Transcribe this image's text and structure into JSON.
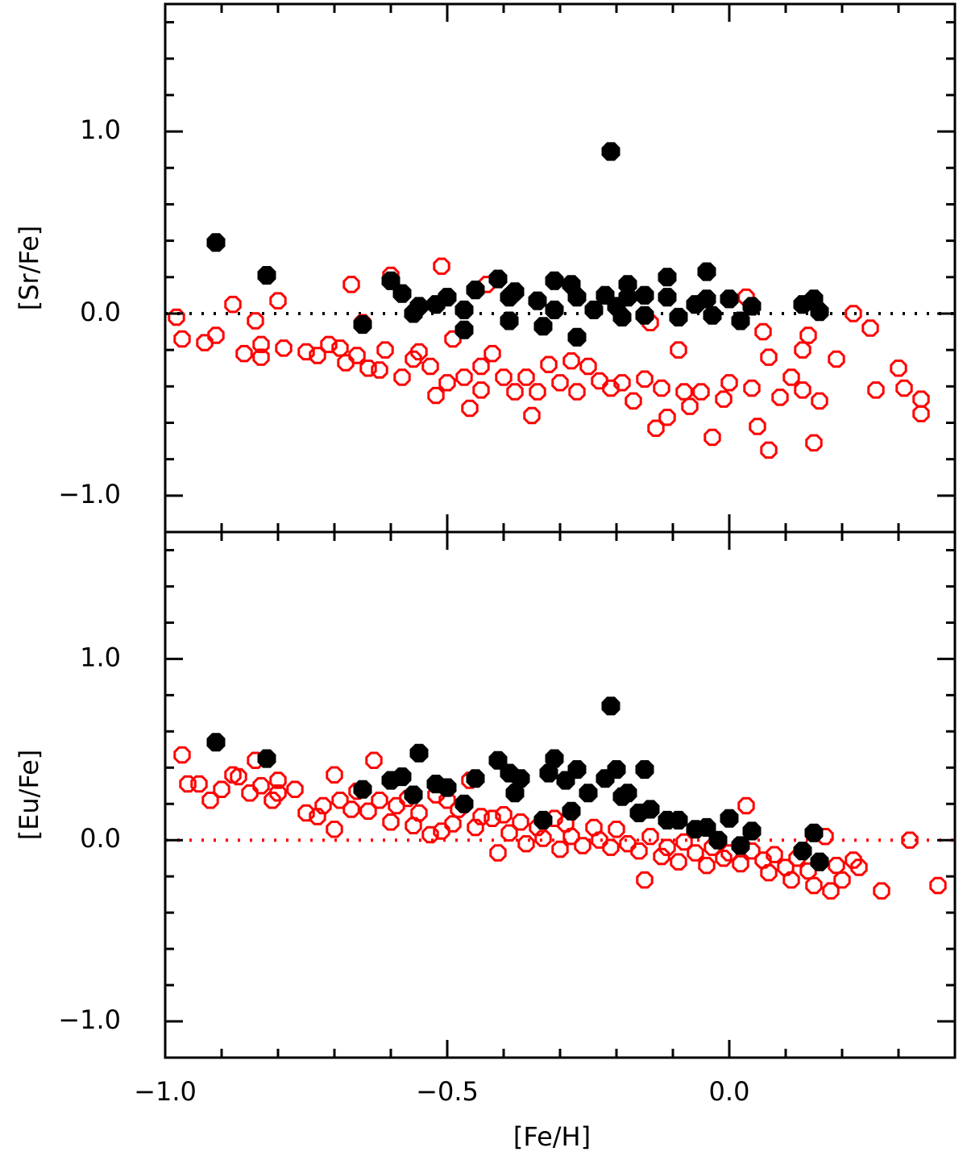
{
  "chart_data": [
    {
      "type": "scatter",
      "ylabel": "[Sr/Fe]",
      "xlim": [
        -1.0,
        0.4
      ],
      "ylim": [
        -1.2,
        1.7
      ],
      "xticks": [
        -1.0,
        -0.5,
        0.0
      ],
      "show_xtick_labels": false,
      "xminorticks": [
        -0.9,
        -0.8,
        -0.7,
        -0.6,
        -0.4,
        -0.3,
        -0.2,
        -0.1,
        0.1,
        0.2,
        0.3
      ],
      "yticks": [
        {
          "value": -1.0,
          "label": "−1.0"
        },
        {
          "value": 0.0,
          "label": "0.0"
        },
        {
          "value": 1.0,
          "label": "1.0"
        }
      ],
      "yminorticks": [
        -0.8,
        -0.6,
        -0.4,
        -0.2,
        0.2,
        0.4,
        0.6,
        0.8,
        1.2,
        1.4,
        1.6
      ],
      "hline": 0.0,
      "hline_color": "#000000",
      "series": [
        {
          "color": "#ff0000",
          "filled": false,
          "x": [
            -0.98,
            -0.97,
            -0.93,
            -0.91,
            -0.88,
            -0.86,
            -0.84,
            -0.83,
            -0.83,
            -0.8,
            -0.79,
            -0.75,
            -0.73,
            -0.71,
            -0.69,
            -0.68,
            -0.67,
            -0.66,
            -0.65,
            -0.64,
            -0.62,
            -0.61,
            -0.6,
            -0.58,
            -0.56,
            -0.55,
            -0.53,
            -0.52,
            -0.51,
            -0.5,
            -0.49,
            -0.47,
            -0.46,
            -0.44,
            -0.44,
            -0.43,
            -0.42,
            -0.4,
            -0.38,
            -0.36,
            -0.35,
            -0.34,
            -0.32,
            -0.3,
            -0.28,
            -0.27,
            -0.25,
            -0.23,
            -0.21,
            -0.19,
            -0.17,
            -0.15,
            -0.14,
            -0.13,
            -0.12,
            -0.11,
            -0.09,
            -0.08,
            -0.07,
            -0.05,
            -0.03,
            -0.01,
            0.0,
            0.03,
            0.04,
            0.05,
            0.06,
            0.07,
            0.07,
            0.09,
            0.11,
            0.13,
            0.13,
            0.14,
            0.15,
            0.16,
            0.19,
            0.22,
            0.25,
            0.26,
            0.3,
            0.31,
            0.34,
            0.34
          ],
          "values": [
            -0.02,
            -0.14,
            -0.16,
            -0.12,
            0.05,
            -0.22,
            -0.04,
            -0.17,
            -0.24,
            0.07,
            -0.19,
            -0.21,
            -0.23,
            -0.17,
            -0.19,
            -0.27,
            0.16,
            -0.23,
            -0.05,
            -0.3,
            -0.31,
            -0.2,
            0.21,
            -0.35,
            -0.25,
            -0.21,
            -0.29,
            -0.45,
            0.26,
            -0.38,
            -0.14,
            -0.35,
            -0.52,
            -0.29,
            -0.42,
            0.16,
            -0.22,
            -0.35,
            -0.43,
            -0.35,
            -0.56,
            -0.43,
            -0.28,
            -0.38,
            -0.26,
            -0.43,
            -0.29,
            -0.37,
            -0.41,
            -0.38,
            -0.48,
            -0.36,
            -0.05,
            -0.63,
            -0.41,
            -0.57,
            -0.2,
            -0.43,
            -0.51,
            -0.43,
            -0.68,
            -0.47,
            -0.38,
            0.09,
            -0.41,
            -0.62,
            -0.1,
            -0.75,
            -0.24,
            -0.46,
            -0.35,
            -0.2,
            -0.42,
            -0.12,
            -0.71,
            -0.48,
            -0.25,
            0.0,
            -0.08,
            -0.42,
            -0.3,
            -0.41,
            -0.47,
            -0.55
          ]
        },
        {
          "color": "#000000",
          "filled": true,
          "x": [
            -0.91,
            -0.82,
            -0.65,
            -0.6,
            -0.58,
            -0.56,
            -0.55,
            -0.52,
            -0.5,
            -0.47,
            -0.47,
            -0.45,
            -0.41,
            -0.39,
            -0.38,
            -0.39,
            -0.34,
            -0.33,
            -0.31,
            -0.31,
            -0.28,
            -0.27,
            -0.27,
            -0.24,
            -0.22,
            -0.21,
            -0.2,
            -0.19,
            -0.18,
            -0.18,
            -0.15,
            -0.15,
            -0.11,
            -0.11,
            -0.09,
            -0.06,
            -0.04,
            -0.04,
            -0.03,
            0.0,
            0.02,
            0.04,
            0.13,
            0.15,
            0.16
          ],
          "values": [
            0.39,
            0.21,
            -0.06,
            0.18,
            0.11,
            0.0,
            0.04,
            0.05,
            0.09,
            -0.09,
            0.02,
            0.13,
            0.19,
            0.09,
            0.12,
            -0.04,
            0.07,
            -0.07,
            0.18,
            0.02,
            0.16,
            -0.13,
            0.09,
            0.02,
            0.1,
            0.89,
            0.04,
            -0.02,
            0.16,
            0.09,
            0.1,
            -0.01,
            0.2,
            0.09,
            -0.02,
            0.05,
            0.23,
            0.08,
            -0.01,
            0.08,
            -0.04,
            0.04,
            0.05,
            0.08,
            0.01
          ]
        }
      ]
    },
    {
      "type": "scatter",
      "ylabel": "[Eu/Fe]",
      "xlabel": "[Fe/H]",
      "xlim": [
        -1.0,
        0.4
      ],
      "ylim": [
        -1.2,
        1.7
      ],
      "xticks": [
        {
          "value": -1.0,
          "label": "−1.0"
        },
        {
          "value": -0.5,
          "label": "−0.5"
        },
        {
          "value": 0.0,
          "label": "0.0"
        }
      ],
      "show_xtick_labels": true,
      "xminorticks": [
        -0.9,
        -0.8,
        -0.7,
        -0.6,
        -0.4,
        -0.3,
        -0.2,
        -0.1,
        0.1,
        0.2,
        0.3
      ],
      "yticks": [
        {
          "value": -1.0,
          "label": "−1.0"
        },
        {
          "value": 0.0,
          "label": "0.0"
        },
        {
          "value": 1.0,
          "label": "1.0"
        }
      ],
      "yminorticks": [
        -0.8,
        -0.6,
        -0.4,
        -0.2,
        0.2,
        0.4,
        0.6,
        0.8,
        1.2,
        1.4,
        1.6
      ],
      "hline": 0.0,
      "hline_color": "#ff0000",
      "series": [
        {
          "color": "#ff0000",
          "filled": false,
          "x": [
            -0.97,
            -0.96,
            -0.94,
            -0.92,
            -0.9,
            -0.88,
            -0.87,
            -0.85,
            -0.84,
            -0.83,
            -0.81,
            -0.8,
            -0.8,
            -0.77,
            -0.75,
            -0.73,
            -0.72,
            -0.7,
            -0.7,
            -0.69,
            -0.67,
            -0.66,
            -0.64,
            -0.63,
            -0.62,
            -0.6,
            -0.59,
            -0.57,
            -0.56,
            -0.55,
            -0.53,
            -0.52,
            -0.51,
            -0.5,
            -0.49,
            -0.48,
            -0.46,
            -0.45,
            -0.44,
            -0.42,
            -0.41,
            -0.4,
            -0.39,
            -0.37,
            -0.36,
            -0.34,
            -0.33,
            -0.31,
            -0.3,
            -0.29,
            -0.28,
            -0.26,
            -0.24,
            -0.23,
            -0.21,
            -0.2,
            -0.18,
            -0.16,
            -0.15,
            -0.14,
            -0.12,
            -0.11,
            -0.09,
            -0.08,
            -0.06,
            -0.04,
            -0.03,
            -0.01,
            0.0,
            0.02,
            0.03,
            0.04,
            0.06,
            0.07,
            0.08,
            0.1,
            0.11,
            0.12,
            0.14,
            0.15,
            0.17,
            0.18,
            0.19,
            0.2,
            0.22,
            0.23,
            0.27,
            0.32,
            0.37
          ],
          "values": [
            0.47,
            0.31,
            0.31,
            0.22,
            0.28,
            0.36,
            0.35,
            0.26,
            0.44,
            0.3,
            0.22,
            0.33,
            0.26,
            0.28,
            0.15,
            0.13,
            0.19,
            0.36,
            0.06,
            0.22,
            0.17,
            0.27,
            0.16,
            0.44,
            0.22,
            0.1,
            0.19,
            0.23,
            0.08,
            0.15,
            0.03,
            0.25,
            0.05,
            0.22,
            0.09,
            0.17,
            0.33,
            0.07,
            0.13,
            0.12,
            -0.07,
            0.14,
            0.04,
            0.1,
            -0.02,
            0.07,
            0.01,
            0.12,
            -0.05,
            0.09,
            0.02,
            -0.03,
            0.07,
            0.0,
            -0.04,
            0.06,
            -0.02,
            -0.06,
            -0.22,
            0.02,
            -0.09,
            -0.04,
            -0.12,
            -0.01,
            -0.07,
            -0.14,
            -0.04,
            -0.1,
            -0.07,
            -0.13,
            0.19,
            -0.06,
            -0.11,
            -0.18,
            -0.08,
            -0.15,
            -0.22,
            -0.1,
            -0.17,
            -0.25,
            0.02,
            -0.28,
            -0.14,
            -0.22,
            -0.11,
            -0.15,
            -0.28,
            0.0,
            -0.25
          ]
        },
        {
          "color": "#000000",
          "filled": true,
          "x": [
            -0.91,
            -0.82,
            -0.65,
            -0.6,
            -0.58,
            -0.56,
            -0.55,
            -0.52,
            -0.5,
            -0.47,
            -0.45,
            -0.41,
            -0.39,
            -0.38,
            -0.37,
            -0.33,
            -0.32,
            -0.31,
            -0.29,
            -0.28,
            -0.27,
            -0.25,
            -0.22,
            -0.21,
            -0.2,
            -0.19,
            -0.18,
            -0.16,
            -0.15,
            -0.14,
            -0.11,
            -0.09,
            -0.06,
            -0.04,
            -0.02,
            0.0,
            0.02,
            0.04,
            0.13,
            0.15,
            0.16
          ],
          "values": [
            0.54,
            0.45,
            0.28,
            0.33,
            0.35,
            0.25,
            0.48,
            0.31,
            0.29,
            0.2,
            0.34,
            0.44,
            0.37,
            0.26,
            0.34,
            0.11,
            0.37,
            0.45,
            0.33,
            0.16,
            0.39,
            0.26,
            0.34,
            0.74,
            0.39,
            0.24,
            0.26,
            0.15,
            0.39,
            0.17,
            0.11,
            0.11,
            0.06,
            0.07,
            0.0,
            0.12,
            -0.03,
            0.05,
            -0.06,
            0.04,
            -0.12
          ]
        }
      ]
    }
  ]
}
